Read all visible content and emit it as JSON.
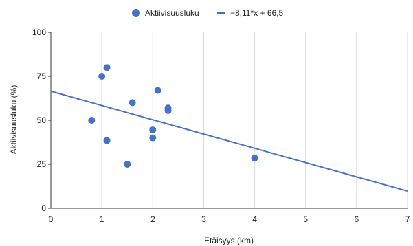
{
  "chart_data": {
    "type": "scatter",
    "xlabel": "Etäisyys (km)",
    "ylabel": "Aktiivisuusluku (%)",
    "xlim": [
      0,
      7
    ],
    "ylim": [
      0,
      100
    ],
    "x_ticks": [
      "0",
      "1",
      "2",
      "3",
      "4",
      "5",
      "6",
      "7"
    ],
    "y_ticks": [
      "0",
      "25",
      "50",
      "75",
      "100"
    ],
    "grid": "vertical",
    "legend_position": "top",
    "series": [
      {
        "name": "Aktiivisuusluku",
        "color": "#4472c4",
        "points": [
          {
            "x": 0.8,
            "y": 50
          },
          {
            "x": 1.0,
            "y": 75
          },
          {
            "x": 1.1,
            "y": 80
          },
          {
            "x": 1.1,
            "y": 38.5
          },
          {
            "x": 1.5,
            "y": 25
          },
          {
            "x": 1.6,
            "y": 60
          },
          {
            "x": 2.0,
            "y": 44.5
          },
          {
            "x": 2.0,
            "y": 40
          },
          {
            "x": 2.1,
            "y": 67
          },
          {
            "x": 2.3,
            "y": 57
          },
          {
            "x": 2.3,
            "y": 55.5
          },
          {
            "x": 4.0,
            "y": 28.5
          }
        ]
      }
    ],
    "trendline": {
      "name": "−8,11*x + 66,5",
      "slope": -8.11,
      "intercept": 66.5,
      "color": "#4472c4"
    }
  }
}
